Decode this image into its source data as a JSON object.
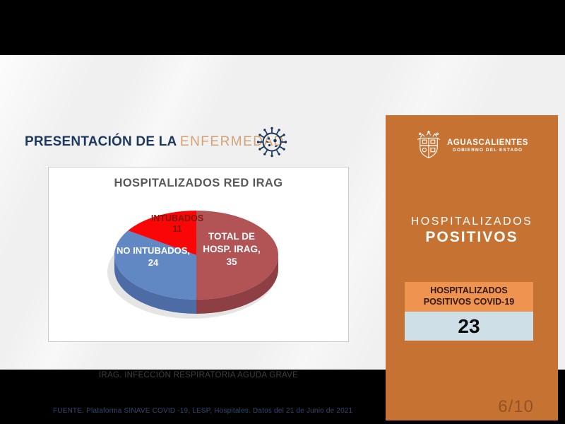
{
  "header": {
    "title_dark": "PRESENTACIÓN DE LA",
    "title_light": "ENFERMEDAD"
  },
  "chart_data": {
    "type": "pie",
    "style": "3d",
    "title": "HOSPITALIZADOS RED IRAG",
    "total": 70,
    "start_angle_deg": 0,
    "direction": "clockwise",
    "slices": [
      {
        "name": "TOTAL DE HOSP. IRAG",
        "value": 35,
        "color": "#b25456",
        "side_color": "#8e3f43",
        "label_color": "#ffffff",
        "label_lines": [
          "TOTAL DE",
          "HOSP. IRAG,",
          "35"
        ]
      },
      {
        "name": "NO INTUBADOS",
        "value": 24,
        "color": "#6288c4",
        "side_color": "#4d6ca5",
        "label_color": "#ffffff",
        "label_lines": [
          "NO INTUBADOS,",
          "24"
        ]
      },
      {
        "name": "INTUBADOS",
        "value": 11,
        "color": "#fb0606",
        "side_color": "#b00404",
        "label_color": "#7e190f",
        "label_lines": [
          "INTUBADOS",
          "11"
        ]
      }
    ]
  },
  "main": {
    "footnote": "IRAG. INFECCIÓN RESPIRATORIA AGUDA GRAVE",
    "source": "FUENTE. Plataforma SINAVE COVID -19, LESP, Hospitales. Datos del 21 de Junio de 2021"
  },
  "sidebar": {
    "accent_color": "#c57233",
    "logo_title": "AGUASCALIENTES",
    "logo_subtitle": "GOBIERNO DEL ESTADO",
    "heading_line1": "HOSPITALIZADOS",
    "heading_line2": "POSITIVOS",
    "card": {
      "label_line1": "HOSPITALIZADOS",
      "label_line2": "POSITIVOS COVID-19",
      "value": "23"
    },
    "page_indicator": "6/10"
  }
}
